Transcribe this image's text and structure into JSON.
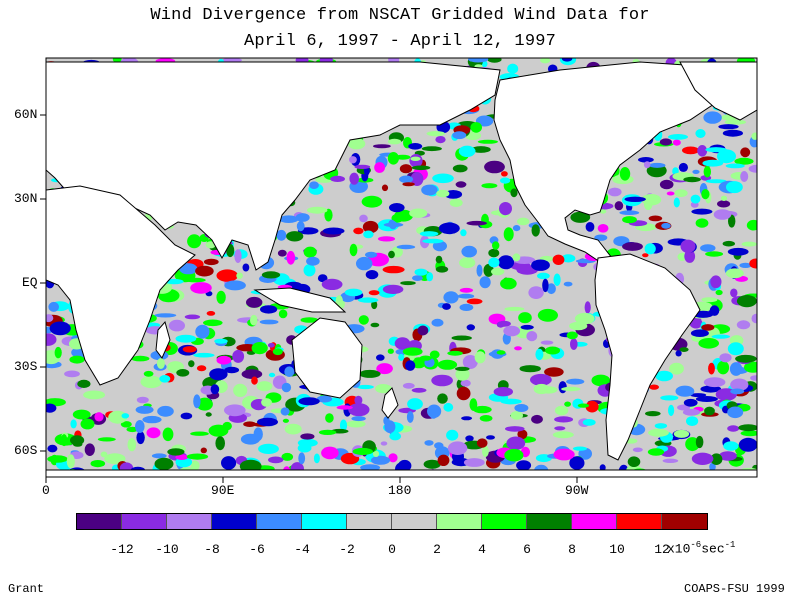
{
  "title": {
    "line1": "Wind Divergence from NSCAT Gridded Wind Data for",
    "line2": "April 6, 1997 - April 12, 1997"
  },
  "map": {
    "lat_labels": [
      "60N",
      "30N",
      "EQ",
      "30S",
      "60S"
    ],
    "lon_labels": [
      "0",
      "90E",
      "180",
      "90W"
    ],
    "land_color": "#ffffff",
    "coastline_color": "#000000"
  },
  "legend": {
    "colors": [
      "#4b0082",
      "#8a2be2",
      "#b07cf0",
      "#0000cd",
      "#3c8cff",
      "#00ffff",
      "#cdcdcd",
      "#cdcdcd",
      "#a0ff90",
      "#00ff00",
      "#008000",
      "#ff00ff",
      "#ff0000",
      "#a00000"
    ],
    "tick_labels": [
      "-12",
      "-10",
      "-8",
      "-6",
      "-4",
      "-2",
      "0",
      "2",
      "4",
      "6",
      "8",
      "10",
      "12"
    ],
    "units_text": "x10",
    "units_exp": "-6",
    "units_suffix": "sec",
    "units_exp2": "-1"
  },
  "footer": {
    "author": "Grant",
    "credit": "COAPS-FSU 1999"
  }
}
